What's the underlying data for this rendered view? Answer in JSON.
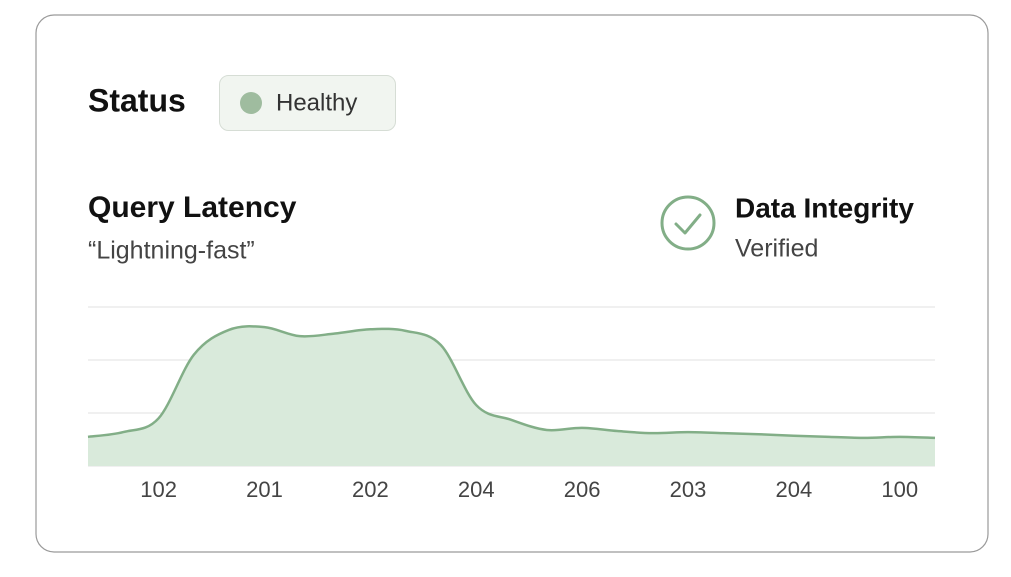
{
  "status": {
    "label": "Status",
    "badge": "Healthy"
  },
  "integrity": {
    "title": "Data Integrity",
    "state": "Verified"
  },
  "chart_data": {
    "type": "area",
    "title": "Query Latency",
    "subtitle": "“Lightning-fast”",
    "categories": [
      null,
      null,
      "102",
      null,
      null,
      "201",
      null,
      null,
      "202",
      null,
      null,
      "204",
      null,
      null,
      "206",
      null,
      null,
      "203",
      null,
      null,
      "204",
      null,
      null,
      "100",
      null
    ],
    "values": [
      0.55,
      0.64,
      0.9,
      2.1,
      2.57,
      2.62,
      2.45,
      2.5,
      2.58,
      2.55,
      2.28,
      1.15,
      0.87,
      0.68,
      0.72,
      0.66,
      0.62,
      0.64,
      0.62,
      0.6,
      0.57,
      0.55,
      0.53,
      0.55,
      0.53
    ],
    "color": "#82ae87",
    "fill": "#d9eadb",
    "ylim": [
      0,
      3
    ],
    "yticks": [
      0,
      1,
      2,
      3
    ],
    "grid": true
  }
}
